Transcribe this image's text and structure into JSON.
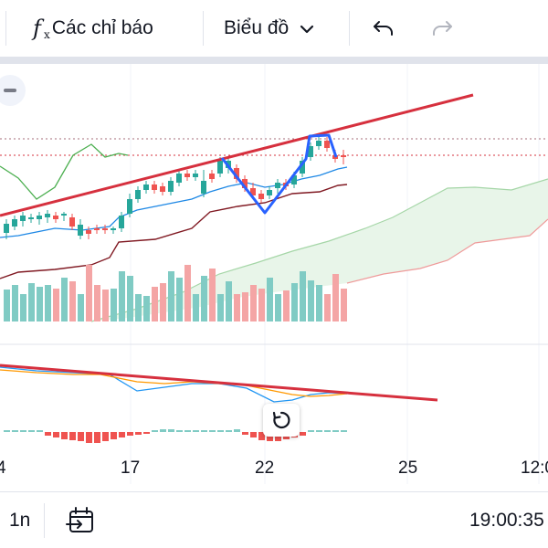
{
  "toolbar": {
    "indicators_label": "Các chỉ báo",
    "chart_type_label": "Biểu đồ",
    "undo_icon": "undo-icon",
    "redo_icon": "redo-icon",
    "fx_icon": "fx-icon"
  },
  "x_axis": {
    "labels": [
      "4",
      "17",
      "22",
      "25",
      "12:0"
    ]
  },
  "bottom_bar": {
    "interval": "1n",
    "goto_icon": "calendar-goto-icon",
    "time": "19:00:35"
  },
  "colors": {
    "up": "#26a69a",
    "down": "#ef5350",
    "trendline": "#d6303e",
    "pattern": "#2962ff",
    "cloud_fill": "#e8f5e9",
    "macd": "#2196f3",
    "signal": "#ff9800"
  }
}
